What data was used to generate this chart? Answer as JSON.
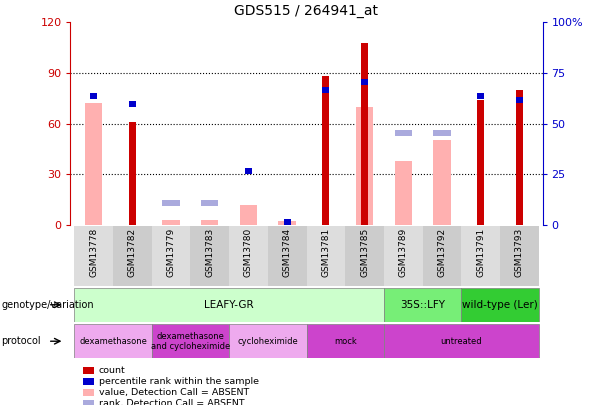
{
  "title": "GDS515 / 264941_at",
  "samples": [
    "GSM13778",
    "GSM13782",
    "GSM13779",
    "GSM13783",
    "GSM13780",
    "GSM13784",
    "GSM13781",
    "GSM13785",
    "GSM13789",
    "GSM13792",
    "GSM13791",
    "GSM13793"
  ],
  "count_values": [
    null,
    61,
    null,
    null,
    null,
    null,
    88,
    108,
    null,
    null,
    74,
    80
  ],
  "pink_values": [
    72,
    null,
    3,
    3,
    12,
    2,
    null,
    70,
    38,
    50,
    null,
    null
  ],
  "blue_rank_values": [
    65,
    61,
    null,
    null,
    28,
    3,
    68,
    72,
    null,
    null,
    65,
    63
  ],
  "blue_small_values": [
    null,
    null,
    12,
    12,
    null,
    null,
    null,
    null,
    47,
    47,
    null,
    null
  ],
  "ylim_left": [
    0,
    120
  ],
  "ylim_right": [
    0,
    100
  ],
  "yticks_left": [
    0,
    30,
    60,
    90,
    120
  ],
  "yticks_right": [
    0,
    25,
    50,
    75,
    100
  ],
  "ytick_labels_left": [
    "0",
    "30",
    "60",
    "90",
    "120"
  ],
  "ytick_labels_right": [
    "0",
    "25",
    "50",
    "75",
    "100%"
  ],
  "left_axis_color": "#cc0000",
  "right_axis_color": "#0000cc",
  "count_color": "#cc0000",
  "pink_color": "#ffb0b0",
  "blue_rank_color": "#0000cc",
  "blue_small_color": "#aaaadd",
  "genotype_groups": [
    {
      "label": "LEAFY-GR",
      "start": 0,
      "end": 8,
      "color": "#ccffcc"
    },
    {
      "label": "35S::LFY",
      "start": 8,
      "end": 10,
      "color": "#77ee77"
    },
    {
      "label": "wild-type (Ler)",
      "start": 10,
      "end": 12,
      "color": "#33cc33"
    }
  ],
  "protocol_groups": [
    {
      "label": "dexamethasone",
      "start": 0,
      "end": 2,
      "color": "#eeaaee"
    },
    {
      "label": "dexamethasone\nand cycloheximide",
      "start": 2,
      "end": 4,
      "color": "#cc44cc"
    },
    {
      "label": "cycloheximide",
      "start": 4,
      "end": 6,
      "color": "#eeaaee"
    },
    {
      "label": "mock",
      "start": 6,
      "end": 8,
      "color": "#cc44cc"
    },
    {
      "label": "untreated",
      "start": 8,
      "end": 12,
      "color": "#cc44cc"
    }
  ],
  "legend_items": [
    {
      "label": "count",
      "color": "#cc0000"
    },
    {
      "label": "percentile rank within the sample",
      "color": "#0000cc"
    },
    {
      "label": "value, Detection Call = ABSENT",
      "color": "#ffb0b0"
    },
    {
      "label": "rank, Detection Call = ABSENT",
      "color": "#aaaadd"
    }
  ],
  "xticklabel_bg": "#dddddd",
  "xticklabel_alt_bg": "#cccccc"
}
